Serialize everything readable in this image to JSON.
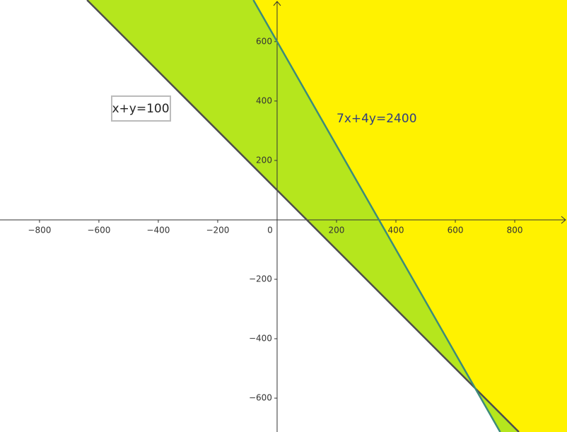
{
  "chart_data": {
    "type": "inequality-region",
    "xlim": [
      -933,
      976
    ],
    "ylim": [
      -714,
      740
    ],
    "xticks": [
      {
        "value": -800,
        "label": "−800"
      },
      {
        "value": -600,
        "label": "−600"
      },
      {
        "value": -400,
        "label": "−400"
      },
      {
        "value": -200,
        "label": "−200"
      },
      0,
      200,
      400,
      600,
      800
    ],
    "yticks": [
      {
        "value": -600,
        "label": "−600"
      },
      {
        "value": -400,
        "label": "−400"
      },
      {
        "value": -200,
        "label": "−200"
      },
      200,
      400,
      600
    ],
    "series": [
      {
        "name": "x+y=100",
        "color": "#4d4d4d",
        "region_color": "#b5e61d",
        "x": [
          -640,
          814
        ],
        "values": [
          740,
          -714
        ]
      },
      {
        "name": "7x+4y=2400",
        "color": "#3d8b7a",
        "region_color": "#fff200",
        "x": [
          -80,
          751
        ],
        "values": [
          740,
          -714
        ]
      }
    ]
  }
}
